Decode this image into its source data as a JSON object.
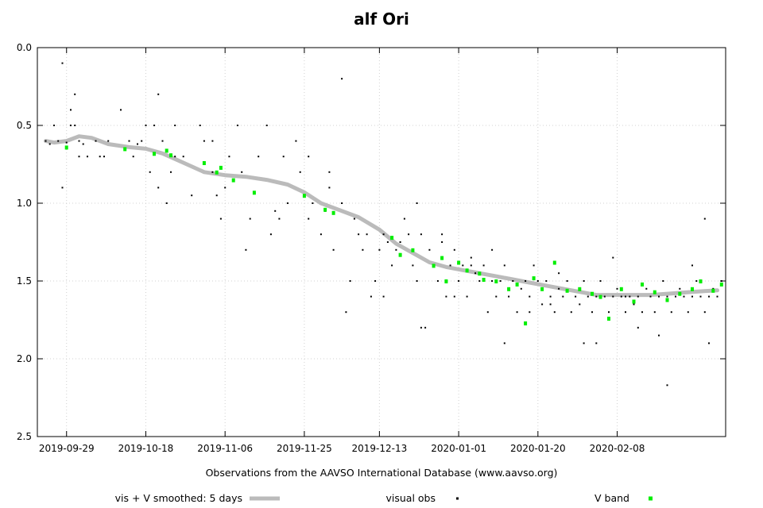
{
  "chart_data": {
    "type": "scatter",
    "title": "alf Ori",
    "xlabel": "Observations from the AAVSO International Database (www.aavso.org)",
    "ylabel": "",
    "y_inverted": true,
    "ylim": [
      0.0,
      2.5
    ],
    "yticks": [
      "0.0",
      "0.5",
      "1.0",
      "1.5",
      "2.0",
      "2.5"
    ],
    "xlim_day": [
      -7,
      158
    ],
    "xtick_labels": [
      "2019-09-29",
      "2019-10-18",
      "2019-11-06",
      "2019-11-25",
      "2019-12-13",
      "2020-01-01",
      "2020-01-20",
      "2020-02-08"
    ],
    "xtick_days": [
      0,
      19,
      38,
      57,
      75,
      94,
      113,
      132
    ],
    "grid": true,
    "legend_position": "bottom",
    "series": [
      {
        "name": "vis + V smoothed: 5 days",
        "kind": "line",
        "color": "#bbbbbb",
        "x": [
          -5,
          -3,
          0,
          3,
          6,
          10,
          15,
          19,
          23,
          28,
          33,
          38,
          43,
          48,
          53,
          57,
          61,
          65,
          70,
          75,
          79,
          83,
          87,
          91,
          95,
          99,
          103,
          107,
          111,
          115,
          119,
          123,
          127,
          131,
          135,
          140,
          145,
          150,
          156
        ],
        "y": [
          0.6,
          0.61,
          0.6,
          0.57,
          0.58,
          0.62,
          0.64,
          0.65,
          0.68,
          0.74,
          0.8,
          0.82,
          0.83,
          0.85,
          0.88,
          0.93,
          1.0,
          1.04,
          1.09,
          1.17,
          1.26,
          1.32,
          1.38,
          1.41,
          1.43,
          1.45,
          1.47,
          1.49,
          1.51,
          1.53,
          1.55,
          1.57,
          1.59,
          1.59,
          1.59,
          1.59,
          1.58,
          1.57,
          1.56
        ]
      },
      {
        "name": "visual obs",
        "kind": "scatter",
        "color": "#000000",
        "x": [
          -5,
          -4,
          -3,
          -2,
          -1,
          0,
          1,
          2,
          3,
          4,
          5,
          7,
          8,
          9,
          10,
          13,
          15,
          17,
          18,
          19,
          20,
          21,
          22,
          23,
          24,
          25,
          26,
          28,
          30,
          32,
          33,
          35,
          37,
          38,
          39,
          41,
          42,
          44,
          46,
          48,
          50,
          51,
          53,
          55,
          56,
          58,
          59,
          61,
          62,
          63,
          64,
          66,
          68,
          69,
          70,
          71,
          72,
          73,
          75,
          76,
          77,
          78,
          79,
          80,
          81,
          82,
          83,
          84,
          85,
          86,
          87,
          88,
          89,
          90,
          91,
          92,
          93,
          94,
          95,
          96,
          97,
          98,
          99,
          100,
          101,
          102,
          103,
          104,
          105,
          106,
          107,
          108,
          109,
          110,
          111,
          112,
          113,
          114,
          115,
          116,
          117,
          118,
          119,
          120,
          121,
          122,
          123,
          124,
          125,
          126,
          127,
          128,
          129,
          130,
          131,
          132,
          133,
          134,
          135,
          136,
          137,
          138,
          139,
          140,
          141,
          142,
          143,
          144,
          145,
          146,
          147,
          148,
          149,
          150,
          151,
          152,
          153,
          154,
          155,
          156,
          157,
          -1,
          2,
          16,
          22,
          36,
          49,
          63,
          67,
          76,
          85,
          90,
          97,
          105,
          116,
          124,
          131,
          137,
          142,
          150,
          154,
          1,
          3,
          21,
          26,
          35,
          43,
          52,
          58,
          66,
          74,
          84,
          93,
          102,
          111,
          118,
          127,
          134,
          144,
          153
        ],
        "y": [
          0.6,
          0.62,
          0.5,
          0.6,
          0.9,
          0.61,
          0.4,
          0.5,
          0.6,
          0.62,
          0.7,
          0.6,
          0.7,
          0.7,
          0.6,
          0.4,
          0.6,
          0.62,
          0.6,
          0.5,
          0.8,
          0.5,
          0.9,
          0.6,
          1.0,
          0.8,
          0.5,
          0.7,
          0.95,
          0.5,
          0.6,
          0.8,
          1.1,
          0.9,
          0.7,
          0.5,
          0.8,
          1.1,
          0.7,
          0.5,
          1.05,
          1.1,
          1.0,
          0.6,
          0.8,
          0.7,
          1.0,
          1.2,
          1.05,
          0.9,
          1.3,
          1.0,
          1.5,
          1.1,
          1.2,
          1.3,
          1.2,
          1.6,
          1.3,
          1.2,
          1.25,
          1.4,
          1.3,
          1.25,
          1.1,
          1.2,
          1.4,
          1.5,
          1.2,
          1.8,
          1.3,
          1.4,
          1.5,
          1.25,
          1.6,
          1.4,
          1.3,
          1.5,
          1.4,
          1.6,
          1.35,
          1.45,
          1.5,
          1.4,
          1.7,
          1.5,
          1.6,
          1.5,
          1.4,
          1.6,
          1.5,
          1.7,
          1.55,
          1.5,
          1.6,
          1.4,
          1.5,
          1.65,
          1.5,
          1.6,
          1.7,
          1.55,
          1.6,
          1.5,
          1.7,
          1.6,
          1.65,
          1.5,
          1.6,
          1.7,
          1.6,
          1.5,
          1.6,
          1.7,
          1.6,
          1.55,
          1.6,
          1.7,
          1.6,
          1.65,
          1.6,
          1.7,
          1.55,
          1.6,
          1.7,
          1.6,
          1.5,
          1.6,
          1.7,
          1.6,
          1.55,
          1.6,
          1.7,
          1.6,
          1.5,
          1.6,
          1.7,
          1.6,
          1.55,
          1.6,
          1.5,
          0.1,
          0.3,
          0.7,
          0.3,
          0.95,
          1.2,
          0.8,
          1.7,
          1.6,
          1.8,
          1.2,
          1.4,
          1.9,
          1.65,
          1.9,
          1.35,
          1.8,
          1.85,
          1.4,
          1.9,
          0.5,
          0.7,
          0.5,
          0.7,
          0.6,
          1.3,
          0.7,
          1.1,
          0.2,
          1.5,
          1.0,
          1.6,
          1.3,
          1.7,
          1.45,
          1.9,
          1.6,
          2.17,
          1.1
        ]
      },
      {
        "name": "V band",
        "kind": "scatter",
        "color": "#00ee00",
        "x": [
          0,
          14,
          21,
          24,
          25,
          33,
          36,
          37,
          40,
          45,
          57,
          62,
          64,
          78,
          80,
          83,
          88,
          90,
          91,
          94,
          96,
          99,
          100,
          103,
          106,
          108,
          110,
          112,
          114,
          117,
          120,
          123,
          126,
          128,
          130,
          133,
          136,
          138,
          141,
          144,
          147,
          150,
          152,
          155,
          157
        ],
        "y": [
          0.64,
          0.65,
          0.68,
          0.66,
          0.69,
          0.74,
          0.8,
          0.77,
          0.85,
          0.93,
          0.95,
          1.04,
          1.06,
          1.22,
          1.33,
          1.3,
          1.4,
          1.35,
          1.5,
          1.38,
          1.43,
          1.45,
          1.49,
          1.5,
          1.55,
          1.52,
          1.77,
          1.48,
          1.55,
          1.38,
          1.56,
          1.55,
          1.58,
          1.6,
          1.74,
          1.55,
          1.63,
          1.52,
          1.57,
          1.62,
          1.58,
          1.55,
          1.5,
          1.56,
          1.52
        ]
      }
    ]
  }
}
